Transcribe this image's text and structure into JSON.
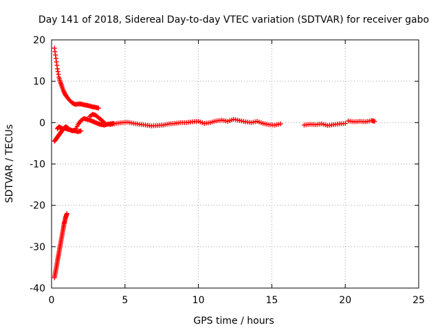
{
  "chart_data": {
    "type": "scatter",
    "title": "Day 141 of 2018, Sidereal Day-to-day VTEC variation (SDTVAR) for receiver gabo",
    "xlabel": "GPS time / hours",
    "ylabel": "SDTVAR / TECUs",
    "xlim": [
      0,
      25
    ],
    "ylim": [
      -40,
      20
    ],
    "xticks": [
      0,
      5,
      10,
      15,
      20,
      25
    ],
    "yticks": [
      -40,
      -30,
      -20,
      -10,
      0,
      10,
      20
    ],
    "grid": true,
    "marker": "+",
    "series": [
      {
        "name": "SDTVAR",
        "color": "#ff0000",
        "segments": [
          {
            "x": [
              0.2,
              0.3,
              0.4,
              0.5,
              0.6,
              0.7,
              0.8,
              0.9,
              1.0,
              1.2,
              1.4,
              1.6,
              1.8,
              2.0,
              2.2,
              2.4,
              2.6,
              2.8,
              3.0,
              3.2
            ],
            "y": [
              18.0,
              15.5,
              13.0,
              11.0,
              9.8,
              8.8,
              7.8,
              7.0,
              6.4,
              5.5,
              4.8,
              4.4,
              4.5,
              4.5,
              4.3,
              4.2,
              4.0,
              3.8,
              3.7,
              3.5
            ]
          },
          {
            "x": [
              0.2,
              0.3,
              0.4,
              0.5,
              0.6,
              0.7,
              0.8,
              0.9,
              1.0,
              1.2,
              1.4,
              1.6,
              1.8,
              2.0,
              2.2,
              2.4,
              2.6,
              2.8,
              3.0,
              3.2,
              3.4,
              3.6,
              3.8,
              4.0,
              4.2
            ],
            "y": [
              -4.5,
              -4.0,
              -3.5,
              -3.0,
              -2.5,
              -2.0,
              -1.5,
              -1.2,
              -1.0,
              -1.6,
              -2.0,
              -1.8,
              -0.5,
              0.5,
              1.0,
              0.8,
              0.6,
              0.3,
              0.0,
              -0.3,
              -0.5,
              -0.6,
              -0.4,
              -0.3,
              -0.2
            ]
          },
          {
            "x": [
              0.4,
              0.5,
              0.6,
              0.7,
              0.8,
              0.9,
              1.0,
              1.2,
              1.4,
              1.6,
              1.8,
              2.0
            ],
            "y": [
              -1.5,
              -1.0,
              -1.2,
              -1.4,
              -1.6,
              -1.3,
              -1.5,
              -1.7,
              -1.9,
              -2.0,
              -2.2,
              -2.0
            ]
          },
          {
            "x": [
              2.6,
              2.8,
              3.0,
              3.2,
              3.4,
              3.6
            ],
            "y": [
              1.5,
              2.0,
              1.8,
              1.2,
              0.6,
              0.0
            ]
          },
          {
            "x": [
              0.2,
              0.25,
              0.3,
              0.35,
              0.4,
              0.45,
              0.5,
              0.55,
              0.6,
              0.65,
              0.7,
              0.75,
              0.8,
              0.85,
              0.9,
              0.95,
              1.0,
              1.05
            ],
            "y": [
              -37.5,
              -36.5,
              -35.5,
              -34.5,
              -33.5,
              -32.5,
              -31.5,
              -30.5,
              -29.5,
              -28.5,
              -27.5,
              -26.5,
              -25.5,
              -24.5,
              -23.8,
              -23.0,
              -22.5,
              -22.0
            ]
          },
          {
            "x": [
              4.0,
              4.4,
              4.8,
              5.2,
              5.6,
              6.0,
              6.4,
              6.8,
              7.2,
              7.6,
              8.0,
              8.4,
              8.8,
              9.2,
              9.6,
              10.0,
              10.4,
              10.8,
              11.2,
              11.6,
              12.0,
              12.4,
              12.8,
              13.2,
              13.6,
              14.0,
              14.4,
              14.8,
              15.2,
              15.6
            ],
            "y": [
              -0.5,
              -0.2,
              0.0,
              0.1,
              -0.2,
              -0.4,
              -0.6,
              -0.8,
              -0.7,
              -0.6,
              -0.3,
              -0.2,
              0.0,
              0.0,
              0.2,
              0.3,
              -0.2,
              0.0,
              0.4,
              0.6,
              0.3,
              0.8,
              0.5,
              0.2,
              0.0,
              0.3,
              -0.2,
              -0.5,
              -0.6,
              -0.3
            ]
          },
          {
            "x": [
              17.2,
              17.6,
              18.0,
              18.4,
              18.8,
              19.2,
              19.6,
              20.0
            ],
            "y": [
              -0.6,
              -0.4,
              -0.5,
              -0.3,
              -0.7,
              -0.5,
              -0.3,
              -0.2
            ]
          },
          {
            "x": [
              20.2,
              20.6,
              21.0,
              21.4,
              21.8,
              22.0
            ],
            "y": [
              0.4,
              0.2,
              0.3,
              0.2,
              0.5,
              0.3
            ]
          }
        ]
      }
    ]
  }
}
